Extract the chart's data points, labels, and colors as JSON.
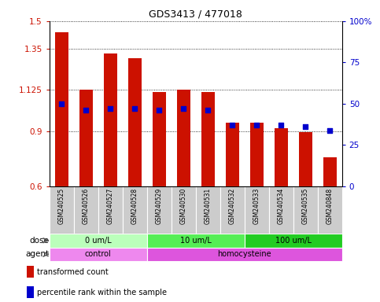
{
  "title": "GDS3413 / 477018",
  "samples": [
    "GSM240525",
    "GSM240526",
    "GSM240527",
    "GSM240528",
    "GSM240529",
    "GSM240530",
    "GSM240531",
    "GSM240532",
    "GSM240533",
    "GSM240534",
    "GSM240535",
    "GSM240848"
  ],
  "bar_values": [
    1.44,
    1.125,
    1.325,
    1.3,
    1.115,
    1.125,
    1.115,
    0.945,
    0.945,
    0.915,
    0.895,
    0.76
  ],
  "percentile_values": [
    50,
    46,
    47,
    47,
    46,
    47,
    46,
    37,
    37,
    37,
    36,
    34
  ],
  "bar_bottom": 0.6,
  "ylim_left": [
    0.6,
    1.5
  ],
  "ylim_right": [
    0,
    100
  ],
  "yticks_left": [
    0.6,
    0.9,
    1.125,
    1.35,
    1.5
  ],
  "ytick_labels_left": [
    "0.6",
    "0.9",
    "1.125",
    "1.35",
    "1.5"
  ],
  "yticks_right": [
    0,
    25,
    50,
    75,
    100
  ],
  "ytick_labels_right": [
    "0",
    "25",
    "50",
    "75",
    "100%"
  ],
  "bar_color": "#cc1100",
  "dot_color": "#0000cc",
  "dose_groups": [
    {
      "label": "0 um/L",
      "start": 0,
      "end": 4,
      "color": "#bbffbb"
    },
    {
      "label": "10 um/L",
      "start": 4,
      "end": 8,
      "color": "#55ee55"
    },
    {
      "label": "100 um/L",
      "start": 8,
      "end": 12,
      "color": "#22cc22"
    }
  ],
  "agent_groups": [
    {
      "label": "control",
      "start": 0,
      "end": 4,
      "color": "#ee88ee"
    },
    {
      "label": "homocysteine",
      "start": 4,
      "end": 12,
      "color": "#dd55dd"
    }
  ],
  "dose_label": "dose",
  "agent_label": "agent",
  "legend_bar": "transformed count",
  "legend_dot": "percentile rank within the sample",
  "sample_bg": "#cccccc",
  "sample_border": "#ffffff"
}
